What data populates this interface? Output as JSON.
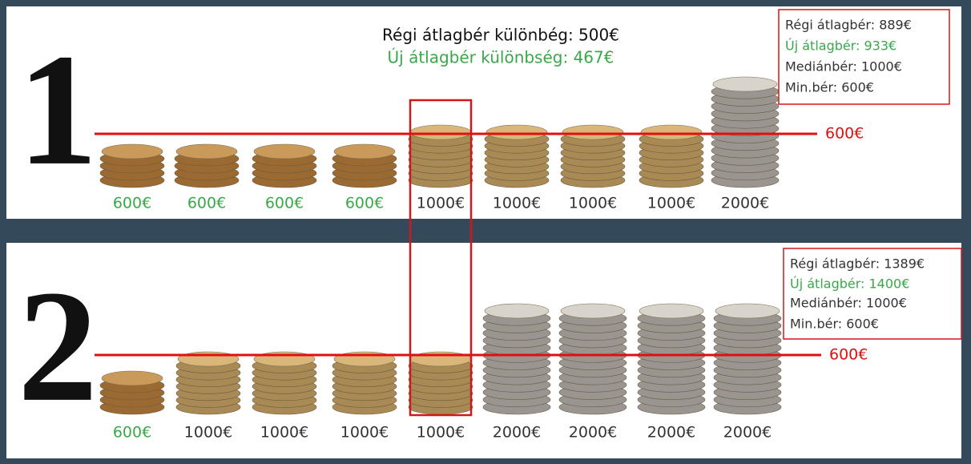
{
  "panels": [
    {
      "number": "1",
      "headline": [
        "Régi átlagbér különbég: 500€",
        "Új átlagbér különbség: 467€"
      ],
      "stats": [
        "Régi átlagbér: 889€",
        "Új átlagbér: 933€",
        "Mediánbér: 1000€",
        "Min.bér: 600€"
      ],
      "line_label": "600€",
      "items": [
        {
          "value": 600,
          "label": "600€",
          "color": "#3aa84a"
        },
        {
          "value": 600,
          "label": "600€",
          "color": "#3aa84a"
        },
        {
          "value": 600,
          "label": "600€",
          "color": "#3aa84a"
        },
        {
          "value": 600,
          "label": "600€",
          "color": "#3aa84a"
        },
        {
          "value": 1000,
          "label": "1000€",
          "color": "#333333"
        },
        {
          "value": 1000,
          "label": "1000€",
          "color": "#333333"
        },
        {
          "value": 1000,
          "label": "1000€",
          "color": "#333333"
        },
        {
          "value": 1000,
          "label": "1000€",
          "color": "#333333"
        },
        {
          "value": 2000,
          "label": "2000€",
          "color": "#333333"
        }
      ]
    },
    {
      "number": "2",
      "headline": [],
      "stats": [
        "Régi átlagbér: 1389€",
        "Új átlagbér: 1400€",
        "Mediánbér: 1000€",
        "Min.bér: 600€"
      ],
      "line_label": "600€",
      "items": [
        {
          "value": 600,
          "label": "600€",
          "color": "#3aa84a"
        },
        {
          "value": 1000,
          "label": "1000€",
          "color": "#333333"
        },
        {
          "value": 1000,
          "label": "1000€",
          "color": "#333333"
        },
        {
          "value": 1000,
          "label": "1000€",
          "color": "#333333"
        },
        {
          "value": 1000,
          "label": "1000€",
          "color": "#333333"
        },
        {
          "value": 2000,
          "label": "2000€",
          "color": "#333333"
        },
        {
          "value": 2000,
          "label": "2000€",
          "color": "#333333"
        },
        {
          "value": 2000,
          "label": "2000€",
          "color": "#333333"
        },
        {
          "value": 2000,
          "label": "2000€",
          "color": "#333333"
        }
      ]
    }
  ]
}
